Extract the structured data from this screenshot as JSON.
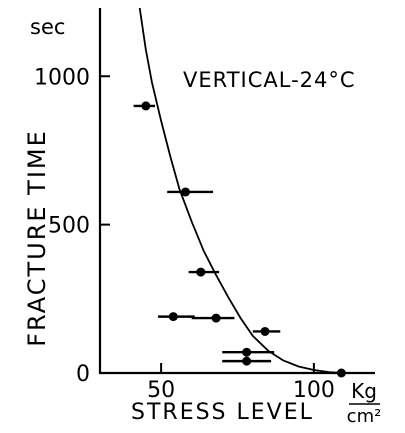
{
  "chart_data": {
    "type": "scatter",
    "annotation": "VERTICAL-24°C",
    "xlabel": "STRESS LEVEL",
    "x_unit_numerator": "Kg",
    "x_unit_denominator": "cm²",
    "ylabel": "FRACTURE TIME",
    "y_unit": "sec",
    "xlim": [
      30,
      120
    ],
    "ylim": [
      0,
      1230
    ],
    "xticks": [
      50,
      100
    ],
    "yticks": [
      0,
      500,
      1000
    ],
    "grid": false,
    "points": [
      {
        "x": 45,
        "y": 900,
        "xerr_low": 41,
        "xerr_high": 48
      },
      {
        "x": 58,
        "y": 610,
        "xerr_low": 52,
        "xerr_high": 67
      },
      {
        "x": 63,
        "y": 340,
        "xerr_low": 59,
        "xerr_high": 69
      },
      {
        "x": 54,
        "y": 190,
        "xerr_low": 49,
        "xerr_high": 61
      },
      {
        "x": 68,
        "y": 185,
        "xerr_low": 60,
        "xerr_high": 74
      },
      {
        "x": 84,
        "y": 140,
        "xerr_low": 80,
        "xerr_high": 89
      },
      {
        "x": 78,
        "y": 70,
        "xerr_low": 70,
        "xerr_high": 87
      },
      {
        "x": 78,
        "y": 40,
        "xerr_low": 70,
        "xerr_high": 86
      },
      {
        "x": 109,
        "y": 0,
        "xerr_low": 109,
        "xerr_high": 109
      }
    ],
    "fit_curve": [
      [
        43,
        1230
      ],
      [
        45,
        1090
      ],
      [
        47,
        980
      ],
      [
        50,
        850
      ],
      [
        53,
        730
      ],
      [
        56,
        620
      ],
      [
        60,
        510
      ],
      [
        64,
        410
      ],
      [
        68,
        330
      ],
      [
        72,
        255
      ],
      [
        76,
        185
      ],
      [
        80,
        125
      ],
      [
        85,
        75
      ],
      [
        90,
        42
      ],
      [
        95,
        22
      ],
      [
        100,
        10
      ],
      [
        105,
        3
      ],
      [
        110,
        0
      ]
    ]
  }
}
